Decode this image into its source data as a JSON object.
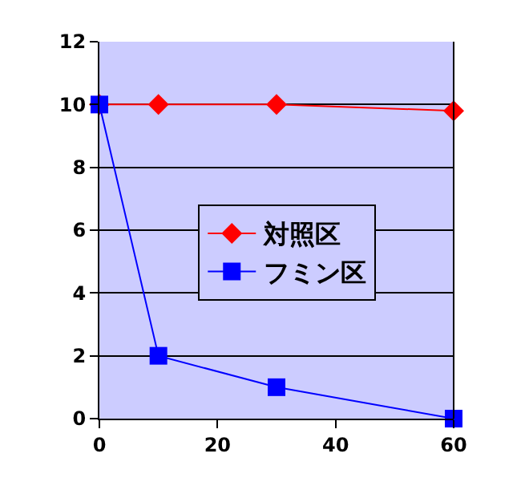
{
  "chart_data": {
    "type": "line",
    "x": [
      0,
      10,
      30,
      60
    ],
    "series": [
      {
        "name": "対照区",
        "color": "#ff0000",
        "marker": "diamond",
        "values": [
          10,
          10,
          10,
          9.8
        ]
      },
      {
        "name": "フミン区",
        "color": "#0000ff",
        "marker": "square",
        "values": [
          10,
          2,
          1,
          0
        ]
      }
    ],
    "xlim": [
      0,
      60
    ],
    "xticks": [
      0,
      20,
      40,
      60
    ],
    "ylim": [
      0,
      12
    ],
    "yticks": [
      0,
      2,
      4,
      6,
      8,
      10,
      12
    ],
    "grid": "y",
    "legend": "center",
    "line_style": "solid"
  }
}
